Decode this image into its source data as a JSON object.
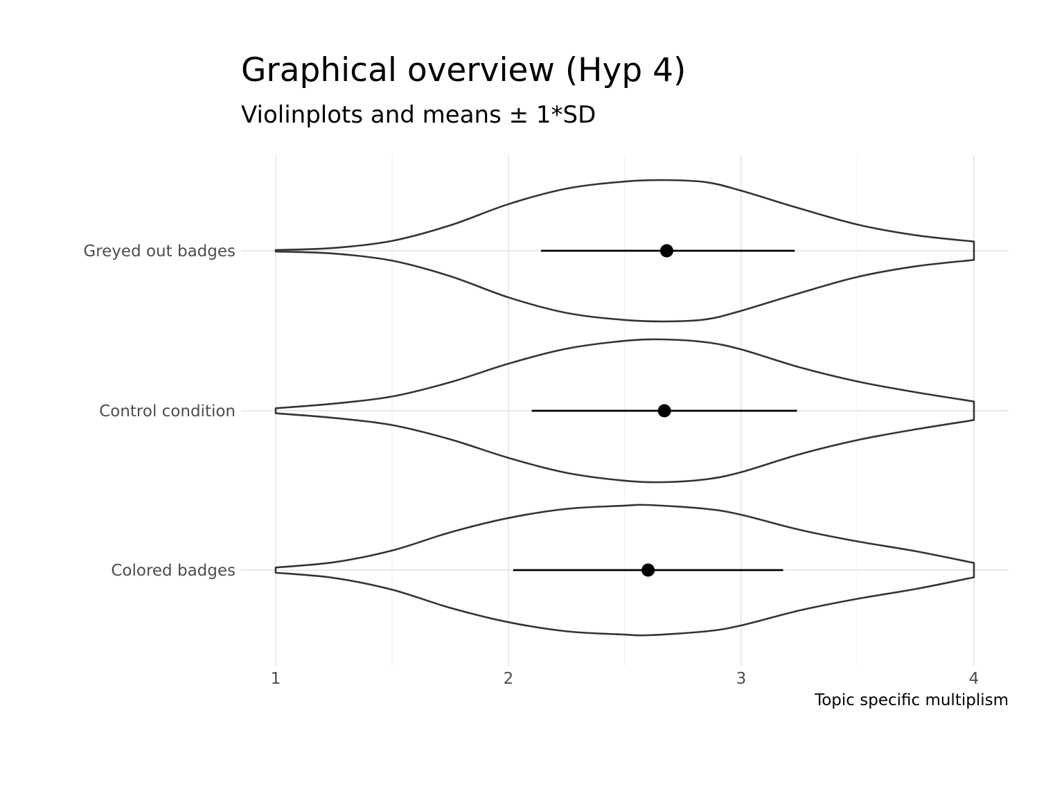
{
  "chart_data": {
    "type": "violin",
    "title": "Graphical overview (Hyp 4)",
    "subtitle": "Violinplots and means ± 1*SD",
    "xlabel": "Topic specific multiplism",
    "ylabel": "",
    "xlim": [
      1,
      4
    ],
    "x_ticks": [
      "1",
      "2",
      "3",
      "4"
    ],
    "orientation": "horizontal",
    "grid": true,
    "categories": [
      "Greyed out badges",
      "Control condition",
      "Colored badges"
    ],
    "series": [
      {
        "category": "Greyed out badges",
        "mean": 2.68,
        "sd_low": 2.14,
        "sd_high": 3.23,
        "density_x": [
          1.0,
          1.25,
          1.5,
          1.75,
          2.0,
          2.25,
          2.5,
          2.68,
          2.85,
          3.0,
          3.25,
          3.5,
          3.75,
          4.0
        ],
        "density": [
          0.01,
          0.04,
          0.14,
          0.36,
          0.66,
          0.88,
          0.98,
          1.0,
          0.97,
          0.85,
          0.6,
          0.37,
          0.22,
          0.13
        ]
      },
      {
        "category": "Control condition",
        "mean": 2.67,
        "sd_low": 2.1,
        "sd_high": 3.24,
        "density_x": [
          1.0,
          1.25,
          1.5,
          1.75,
          2.0,
          2.25,
          2.5,
          2.67,
          2.85,
          3.0,
          3.25,
          3.5,
          3.75,
          4.0
        ],
        "density": [
          0.035,
          0.1,
          0.2,
          0.4,
          0.66,
          0.87,
          0.98,
          1.0,
          0.96,
          0.86,
          0.61,
          0.41,
          0.26,
          0.13
        ]
      },
      {
        "category": "Colored badges",
        "mean": 2.6,
        "sd_low": 2.02,
        "sd_high": 3.18,
        "density_x": [
          1.0,
          1.25,
          1.5,
          1.75,
          2.0,
          2.25,
          2.5,
          2.6,
          2.85,
          3.0,
          3.25,
          3.5,
          3.75,
          4.0
        ],
        "density": [
          0.04,
          0.12,
          0.3,
          0.58,
          0.8,
          0.94,
          0.99,
          1.0,
          0.94,
          0.85,
          0.62,
          0.44,
          0.29,
          0.11
        ]
      }
    ]
  }
}
